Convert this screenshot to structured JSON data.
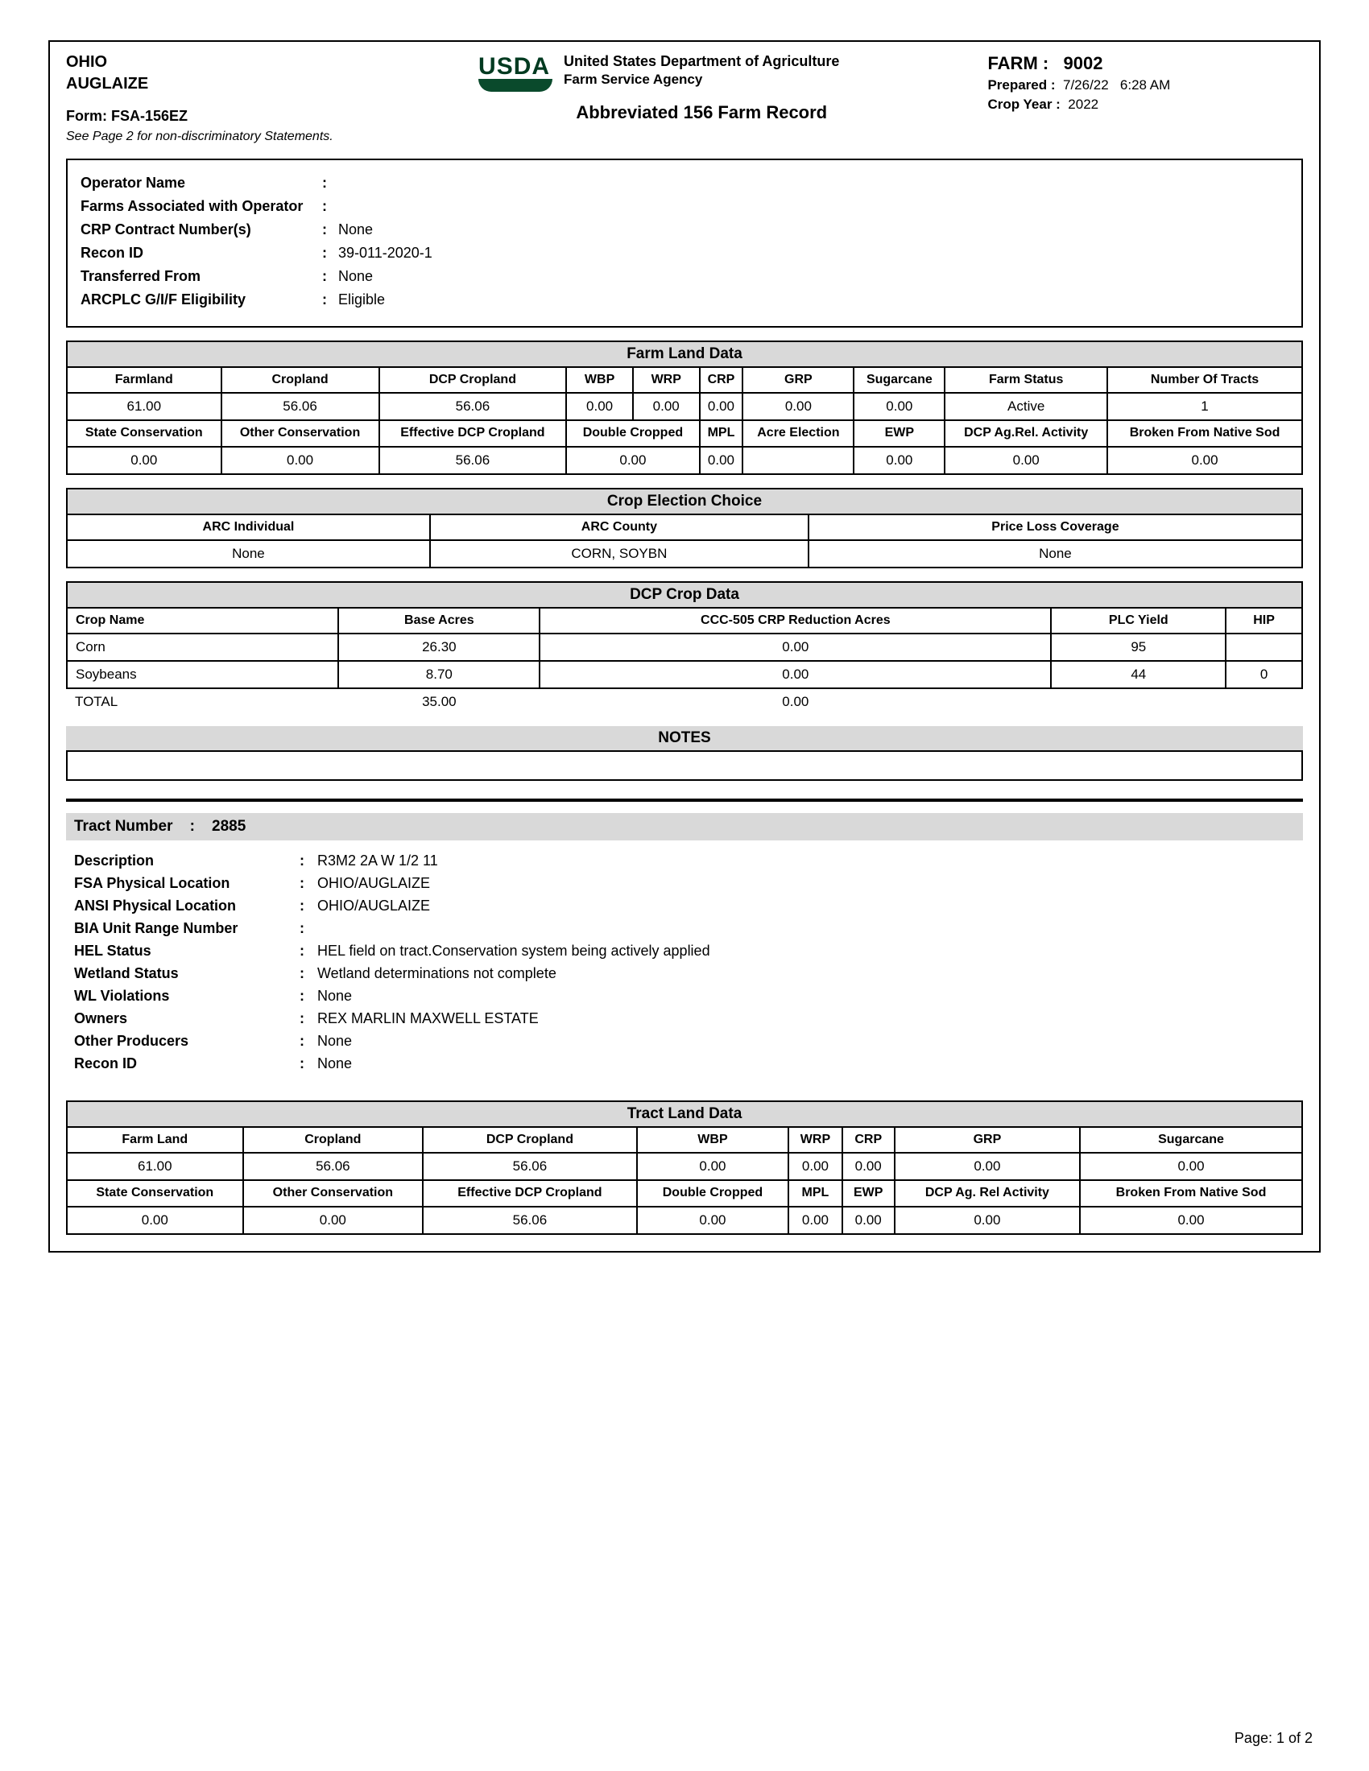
{
  "header": {
    "state": "OHIO",
    "county": "AUGLAIZE",
    "form_label": "Form:",
    "form_id": "FSA-156EZ",
    "disclaimer": "See Page 2 for non-discriminatory Statements.",
    "dept1": "United States Department of Agriculture",
    "dept2": "Farm Service Agency",
    "doc_title": "Abbreviated 156 Farm Record",
    "farm_label": "FARM :",
    "farm_no": "9002",
    "prepared_label": "Prepared :",
    "prepared_date": "7/26/22",
    "prepared_time": "6:28 AM",
    "cropyear_label": "Crop Year :",
    "cropyear": "2022"
  },
  "operator": {
    "rows": [
      {
        "label": "Operator Name",
        "value": ""
      },
      {
        "label": "Farms Associated with Operator",
        "value": ""
      },
      {
        "label": "CRP Contract Number(s)",
        "value": "None"
      },
      {
        "label": "Recon ID",
        "value": "39-011-2020-1"
      },
      {
        "label": "Transferred From",
        "value": "None"
      },
      {
        "label": "ARCPLC G/I/F Eligibility",
        "value": "Eligible"
      }
    ]
  },
  "farm_land": {
    "title": "Farm Land Data",
    "h1": [
      "Farmland",
      "Cropland",
      "DCP Cropland",
      "WBP",
      "WRP",
      "CRP",
      "GRP",
      "Sugarcane",
      "Farm Status",
      "Number Of Tracts"
    ],
    "r1": [
      "61.00",
      "56.06",
      "56.06",
      "0.00",
      "0.00",
      "0.00",
      "0.00",
      "0.00",
      "Active",
      "1"
    ],
    "h2": [
      "State Conservation",
      "Other Conservation",
      "Effective DCP Cropland",
      "Double Cropped",
      "MPL",
      "Acre Election",
      "EWP",
      "DCP Ag.Rel. Activity",
      "Broken From Native Sod"
    ],
    "r2": [
      "0.00",
      "0.00",
      "56.06",
      "0.00",
      "0.00",
      "",
      "0.00",
      "0.00",
      "0.00"
    ]
  },
  "election": {
    "title": "Crop Election Choice",
    "headers": [
      "ARC Individual",
      "ARC County",
      "Price Loss Coverage"
    ],
    "values": [
      "None",
      "CORN, SOYBN",
      "None"
    ]
  },
  "dcp": {
    "title": "DCP Crop Data",
    "headers": [
      "Crop Name",
      "Base Acres",
      "CCC-505 CRP Reduction Acres",
      "PLC Yield",
      "HIP"
    ],
    "rows": [
      [
        "Corn",
        "26.30",
        "0.00",
        "95",
        ""
      ],
      [
        "Soybeans",
        "8.70",
        "0.00",
        "44",
        "0"
      ]
    ],
    "total_label": "TOTAL",
    "total": [
      "35.00",
      "0.00"
    ]
  },
  "notes_title": "NOTES",
  "tract": {
    "header_label": "Tract Number",
    "number": "2885",
    "rows": [
      {
        "label": "Description",
        "value": "R3M2 2A W 1/2 11"
      },
      {
        "label": "FSA Physical Location",
        "value": "OHIO/AUGLAIZE"
      },
      {
        "label": "ANSI Physical Location",
        "value": "OHIO/AUGLAIZE"
      },
      {
        "label": "BIA Unit Range Number",
        "value": ""
      },
      {
        "label": "HEL Status",
        "value": "HEL field on tract.Conservation system being actively applied"
      },
      {
        "label": "Wetland Status",
        "value": "Wetland determinations not complete"
      },
      {
        "label": "WL Violations",
        "value": "None"
      },
      {
        "label": "Owners",
        "value": "REX MARLIN MAXWELL ESTATE"
      },
      {
        "label": "Other Producers",
        "value": "None"
      },
      {
        "label": "Recon ID",
        "value": "None"
      }
    ]
  },
  "tract_land": {
    "title": "Tract Land Data",
    "h1": [
      "Farm Land",
      "Cropland",
      "DCP Cropland",
      "WBP",
      "WRP",
      "CRP",
      "GRP",
      "Sugarcane"
    ],
    "r1": [
      "61.00",
      "56.06",
      "56.06",
      "0.00",
      "0.00",
      "0.00",
      "0.00",
      "0.00"
    ],
    "h2": [
      "State Conservation",
      "Other Conservation",
      "Effective DCP Cropland",
      "Double Cropped",
      "MPL",
      "EWP",
      "DCP Ag. Rel Activity",
      "Broken From Native Sod"
    ],
    "r2": [
      "0.00",
      "0.00",
      "56.06",
      "0.00",
      "0.00",
      "0.00",
      "0.00",
      "0.00"
    ]
  },
  "footer": "Page: 1 of 2"
}
